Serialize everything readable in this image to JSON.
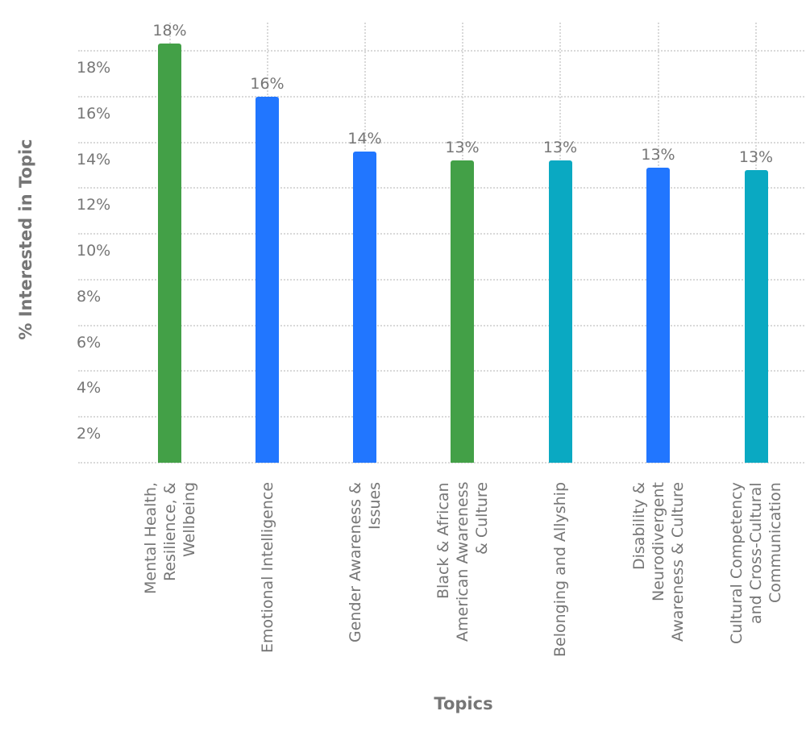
{
  "chart_data": {
    "type": "bar",
    "title": "",
    "xlabel": "Topics",
    "ylabel": "% Interested in Topic",
    "ylim": [
      0,
      18.6
    ],
    "yticks": [
      2,
      4,
      6,
      8,
      10,
      12,
      14,
      16,
      18
    ],
    "ytick_labels": [
      "2%",
      "4%",
      "6%",
      "8%",
      "10%",
      "12%",
      "14%",
      "16%",
      "18%"
    ],
    "grid": true,
    "legend": null,
    "categories": [
      "Mental Health, Resilience, & Wellbeing",
      "Emotional Intelligence",
      "Gender Awareness & Issues",
      "Black & African American Awareness & Culture",
      "Belonging and Allyship",
      "Disability & Neurodivergent Awareness & Culture",
      "Cultural Competency and Cross-Cultural Communication"
    ],
    "values": [
      18.3,
      16.0,
      13.6,
      13.2,
      13.2,
      12.9,
      12.8
    ],
    "data_labels": [
      "18%",
      "16%",
      "14%",
      "13%",
      "13%",
      "13%",
      "13%"
    ],
    "bar_colors": [
      "#43A047",
      "#2176FF",
      "#2176FF",
      "#43A047",
      "#0AA9C2",
      "#2176FF",
      "#0AA9C2"
    ]
  },
  "axes": {
    "x_title": "Topics",
    "y_title": "% Interested in Topic",
    "y_ticks": [
      "2%",
      "4%",
      "6%",
      "8%",
      "10%",
      "12%",
      "14%",
      "16%",
      "18%"
    ]
  },
  "bars": [
    {
      "label_lines": [
        "Mental Health,",
        "Resilience, &",
        "Wellbeing"
      ],
      "value_label": "18%",
      "color": "#43A047"
    },
    {
      "label_lines": [
        "Emotional Intelligence"
      ],
      "value_label": "16%",
      "color": "#2176FF"
    },
    {
      "label_lines": [
        "Gender Awareness &",
        "Issues"
      ],
      "value_label": "14%",
      "color": "#2176FF"
    },
    {
      "label_lines": [
        "Black & African",
        "American Awareness",
        "& Culture"
      ],
      "value_label": "13%",
      "color": "#43A047"
    },
    {
      "label_lines": [
        "Belonging and Allyship"
      ],
      "value_label": "13%",
      "color": "#0AA9C2"
    },
    {
      "label_lines": [
        "Disability &",
        "Neurodivergent",
        "Awareness & Culture"
      ],
      "value_label": "13%",
      "color": "#2176FF"
    },
    {
      "label_lines": [
        "Cultural Competency",
        "and Cross-Cultural",
        "Communication"
      ],
      "value_label": "13%",
      "color": "#0AA9C2"
    }
  ]
}
